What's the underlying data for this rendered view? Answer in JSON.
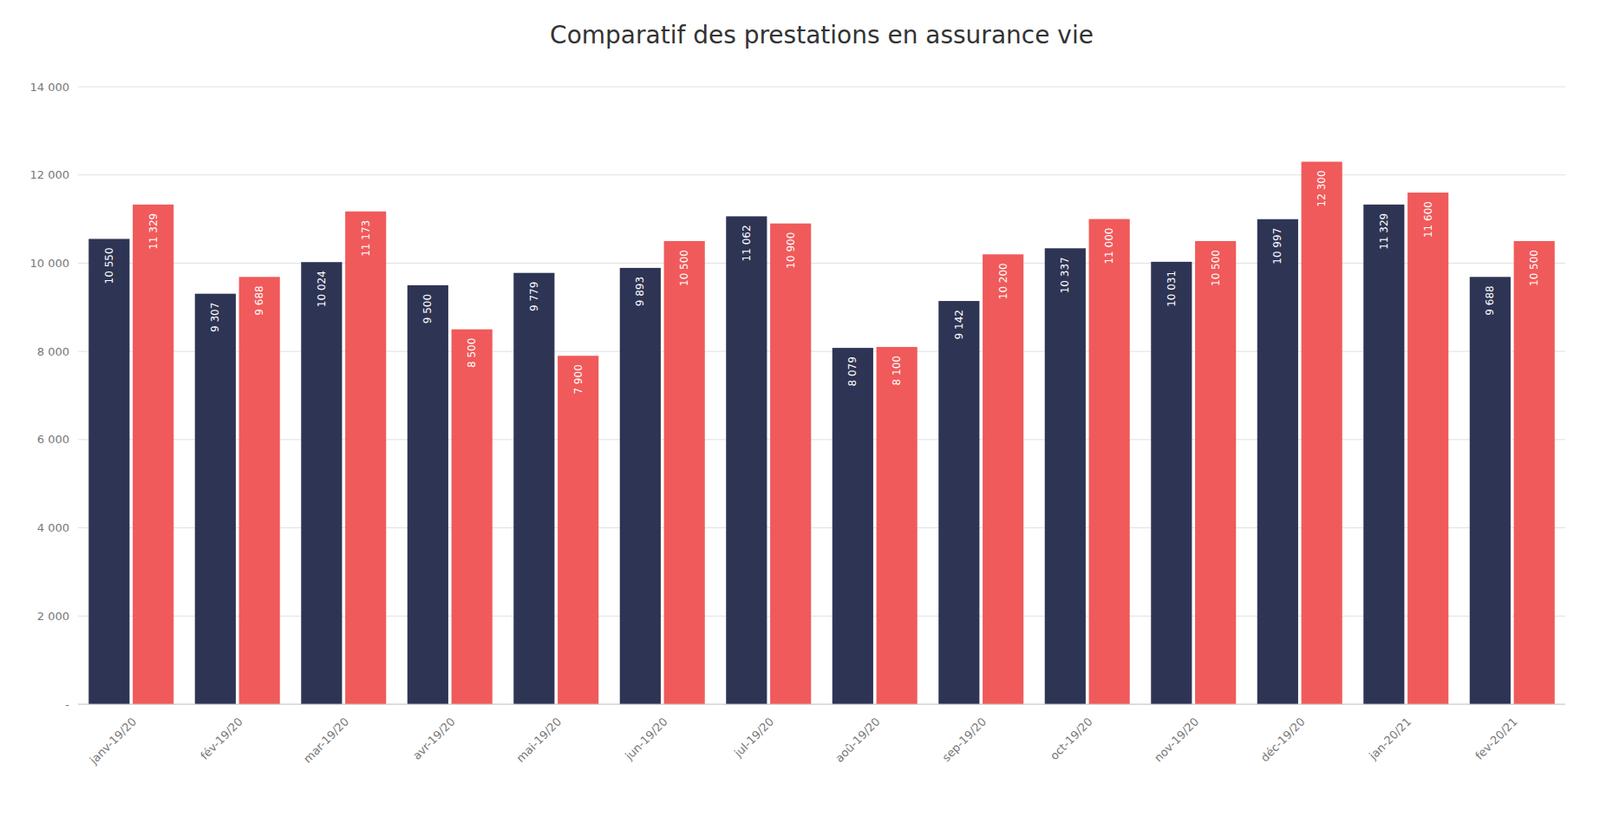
{
  "chart_data": {
    "type": "bar",
    "title": "Comparatif des prestations en assurance vie",
    "categories": [
      "janv-19/20",
      "fév-19/20",
      "mar-19/20",
      "avr-19/20",
      "mai-19/20",
      "jun-19/20",
      "jul-19/20",
      "aoû-19/20",
      "sep-19/20",
      "oct-19/20",
      "nov-19/20",
      "déc-19/20",
      "jan-20/21",
      "fev-20/21"
    ],
    "series": [
      {
        "color": "#2E3454",
        "values": [
          10550,
          9307,
          10024,
          9500,
          9779,
          9893,
          11062,
          8079,
          9142,
          10337,
          10031,
          10997,
          11329,
          9688
        ],
        "value_labels": [
          "10 550",
          "9 307",
          "10 024",
          "9 500",
          "9 779",
          "9 893",
          "11 062",
          "8 079",
          "9 142",
          "10 337",
          "10 031",
          "10 997",
          "11 329",
          "9 688"
        ]
      },
      {
        "color": "#F05A5A",
        "values": [
          11329,
          9688,
          11173,
          8500,
          7900,
          10500,
          10900,
          8100,
          10200,
          11000,
          10500,
          12300,
          11600,
          10500
        ],
        "value_labels": [
          "11 329",
          "9 688",
          "11 173",
          "8 500",
          "7 900",
          "10 500",
          "10 900",
          "8 100",
          "10 200",
          "11 000",
          "10 500",
          "12 300",
          "11 600",
          "10 500"
        ]
      }
    ],
    "ylim": [
      0,
      14000
    ],
    "yticks": [
      {
        "value": 0,
        "label": "-"
      },
      {
        "value": 2000,
        "label": "2 000"
      },
      {
        "value": 4000,
        "label": "4 000"
      },
      {
        "value": 6000,
        "label": "6 000"
      },
      {
        "value": 8000,
        "label": "8 000"
      },
      {
        "value": 10000,
        "label": "10 000"
      },
      {
        "value": 12000,
        "label": "12 000"
      },
      {
        "value": 14000,
        "label": "14 000"
      }
    ],
    "grid": true,
    "data_labels": true
  }
}
